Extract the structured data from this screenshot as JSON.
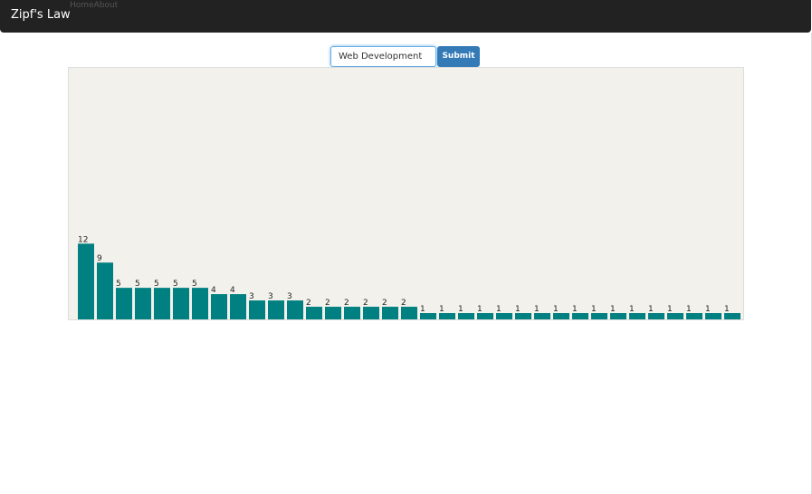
{
  "navbar": {
    "brand": "Zipf's Law",
    "links": [
      "Home",
      "About"
    ]
  },
  "form": {
    "input_value": "Web Development",
    "button": "Submit"
  },
  "chart_data": {
    "type": "bar",
    "values": [
      12,
      9,
      5,
      5,
      5,
      5,
      5,
      4,
      4,
      3,
      3,
      3,
      2,
      2,
      2,
      2,
      2,
      2,
      1,
      1,
      1,
      1,
      1,
      1,
      1,
      1,
      1,
      1,
      1,
      1,
      1,
      1,
      1,
      1,
      1
    ],
    "color": "#008080",
    "ylim": [
      0,
      40
    ]
  }
}
